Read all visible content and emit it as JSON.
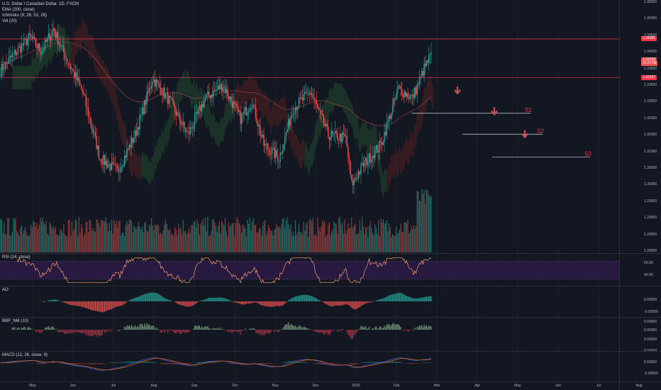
{
  "chart_title": "U.S. Dollar / Canadian Dollar, 1D, FXCM",
  "indicators_legend": [
    "EMA (200, close)",
    "Ichimoku (9, 26, 52, 26)",
    "Vol (20)"
  ],
  "colors": {
    "background": "#131722",
    "up": "#26a69a",
    "down": "#ef5350",
    "rsi": "#f7a072",
    "rsi_band": "#2b1a44",
    "level_line": "#f23645",
    "cloud_bull": "#1d3a2a",
    "cloud_bear": "#3d1e22"
  },
  "chart_data": [
    {
      "type": "candlestick",
      "title": "U.S. Dollar / Canadian Dollar, 1D, FXCM",
      "x_axis": {
        "labels": [
          "May",
          "Jun",
          "Jul",
          "Aug",
          "Sep",
          "Oct",
          "Nov",
          "Dec",
          "2020",
          "Feb",
          "Mar",
          "Apr",
          "May",
          "Jun",
          "Jul",
          "Aug"
        ]
      },
      "y_axis": {
        "labels": [
          "1.35500",
          "1.35000",
          "1.34500",
          "1.34000",
          "1.33500",
          "1.33000",
          "1.32500",
          "1.32000",
          "1.31500",
          "1.31000",
          "1.30500",
          "1.30000",
          "1.29500",
          "1.29000",
          "1.28500",
          "1.28000"
        ],
        "range": [
          1.28,
          1.355
        ]
      },
      "waypoints": [
        [
          0,
          1.3345
        ],
        [
          12,
          1.3395
        ],
        [
          25,
          1.3445
        ],
        [
          35,
          1.34
        ],
        [
          45,
          1.347
        ],
        [
          55,
          1.339
        ],
        [
          70,
          1.328
        ],
        [
          85,
          1.308
        ],
        [
          100,
          1.304
        ],
        [
          115,
          1.315
        ],
        [
          130,
          1.332
        ],
        [
          145,
          1.325
        ],
        [
          160,
          1.315
        ],
        [
          175,
          1.326
        ],
        [
          190,
          1.33
        ],
        [
          205,
          1.32
        ],
        [
          215,
          1.325
        ],
        [
          225,
          1.312
        ],
        [
          238,
          1.308
        ],
        [
          250,
          1.323
        ],
        [
          265,
          1.328
        ],
        [
          280,
          1.315
        ],
        [
          295,
          1.314
        ],
        [
          300,
          1.3
        ],
        [
          310,
          1.306
        ],
        [
          325,
          1.312
        ],
        [
          340,
          1.329
        ],
        [
          352,
          1.326
        ],
        [
          362,
          1.335
        ],
        [
          368,
          1.339
        ]
      ],
      "price_labels": [
        {
          "price": 1.3439,
          "text": "1.34391",
          "color": "#f23645"
        },
        {
          "price": 1.3376,
          "text": "1.33762",
          "color": "#ef5350"
        },
        {
          "price": 1.3366,
          "text": "21:27:56",
          "color": "#ef5350"
        },
        {
          "price": 1.3323,
          "text": "1.33237",
          "color": "#f23645"
        }
      ],
      "resistance_lines": [
        1.3439,
        1.3323
      ],
      "annotations": [
        {
          "label": "S1",
          "price": 1.3215
        },
        {
          "label": "S2",
          "price": 1.3152
        },
        {
          "label": "S3",
          "price": 1.3083
        }
      ]
    },
    {
      "type": "line",
      "title": "RSI (14, close)",
      "y_axis": {
        "labels": [
          "60.00",
          "40.00"
        ]
      },
      "band": [
        30,
        70
      ]
    },
    {
      "type": "bar",
      "title": "AO",
      "y_axis": {
        "labels": [
          "0.00000",
          "-0.02000"
        ]
      }
    },
    {
      "type": "bar",
      "title": "BBP_NM (10)",
      "y_axis": {
        "labels": [
          "0.00000",
          "0.00000",
          "0.00000"
        ]
      }
    },
    {
      "type": "line",
      "title": "MACD (12, 26, close, 9)",
      "y_axis": {
        "labels": [
          "0.00500",
          "0.00000",
          "-0.00500"
        ]
      }
    }
  ]
}
